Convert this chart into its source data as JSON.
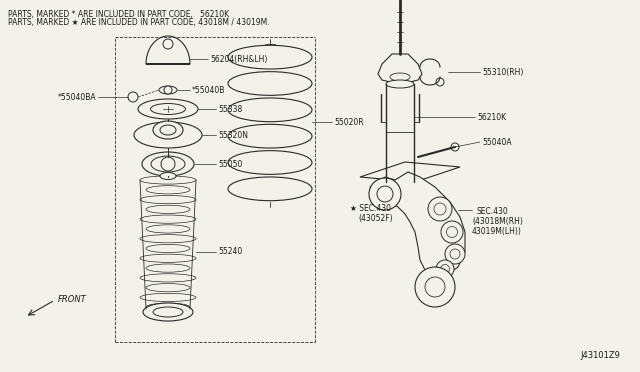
{
  "bg_color": "#f2f2ea",
  "line_color": "#2a2a2a",
  "text_color": "#1a1a1a",
  "header_line1": "PARTS, MARKED * ARE INCLUDED IN PART CODE,   56210K",
  "header_line2": "PARTS, MARKED ★ ARE INCLUDED IN PART CODE, 43018M / 43019M.",
  "diagram_id": "J43101Z9",
  "figsize": [
    6.4,
    3.72
  ],
  "dpi": 100
}
